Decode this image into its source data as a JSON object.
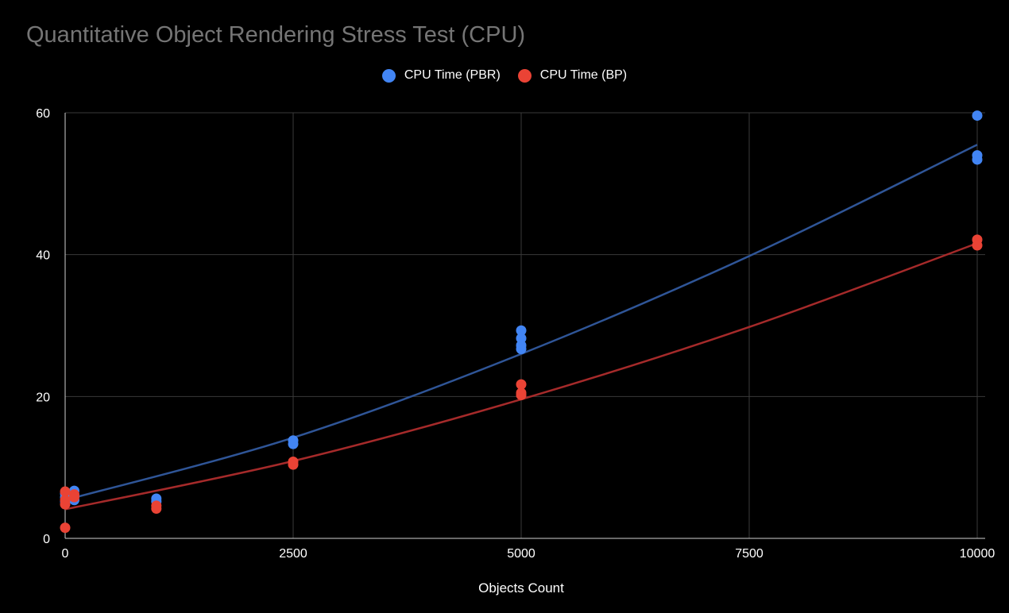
{
  "chart_data": {
    "type": "scatter",
    "title": "Quantitative Object Rendering Stress Test (CPU)",
    "xlabel": "Objects Count",
    "ylabel": "",
    "xlim": [
      0,
      10000
    ],
    "ylim": [
      0,
      60
    ],
    "x_ticks": [
      "0",
      "2500",
      "5000",
      "7500",
      "10000"
    ],
    "y_ticks": [
      "0",
      "20",
      "40",
      "60"
    ],
    "x_tick_values": [
      0,
      2500,
      5000,
      7500,
      10000
    ],
    "y_tick_values": [
      0,
      20,
      40,
      60
    ],
    "grid": true,
    "legend_position": "top",
    "series": [
      {
        "name": "CPU Time (PBR)",
        "color": "#4285f4",
        "trendline_color": "#2f5597",
        "trendline": "polynomial",
        "points": [
          [
            0,
            5.2
          ],
          [
            0,
            5.8
          ],
          [
            0,
            6.3
          ],
          [
            100,
            5.4
          ],
          [
            100,
            6.7
          ],
          [
            1000,
            5.6
          ],
          [
            1000,
            5.2
          ],
          [
            2500,
            13.8
          ],
          [
            2500,
            13.3
          ],
          [
            5000,
            29.3
          ],
          [
            5000,
            28.2
          ],
          [
            5000,
            27.2
          ],
          [
            5000,
            26.7
          ],
          [
            10000,
            59.6
          ],
          [
            10000,
            54.0
          ],
          [
            10000,
            53.4
          ]
        ],
        "trend": [
          [
            0,
            5.4
          ],
          [
            2500,
            14.2
          ],
          [
            5000,
            26.0
          ],
          [
            7500,
            39.8
          ],
          [
            10000,
            55.5
          ]
        ]
      },
      {
        "name": "CPU Time (BP)",
        "color": "#ea4335",
        "trendline_color": "#a52a2a",
        "trendline": "polynomial",
        "points": [
          [
            0,
            6.6
          ],
          [
            0,
            5.4
          ],
          [
            0,
            4.8
          ],
          [
            0,
            1.5
          ],
          [
            100,
            6.2
          ],
          [
            100,
            5.8
          ],
          [
            1000,
            4.6
          ],
          [
            1000,
            4.2
          ],
          [
            2500,
            10.8
          ],
          [
            2500,
            10.4
          ],
          [
            5000,
            21.7
          ],
          [
            5000,
            20.5
          ],
          [
            5000,
            20.2
          ],
          [
            10000,
            42.1
          ],
          [
            10000,
            41.3
          ]
        ],
        "trend": [
          [
            0,
            4.1
          ],
          [
            2500,
            10.9
          ],
          [
            5000,
            19.6
          ],
          [
            7500,
            29.8
          ],
          [
            10000,
            41.6
          ]
        ]
      }
    ]
  }
}
